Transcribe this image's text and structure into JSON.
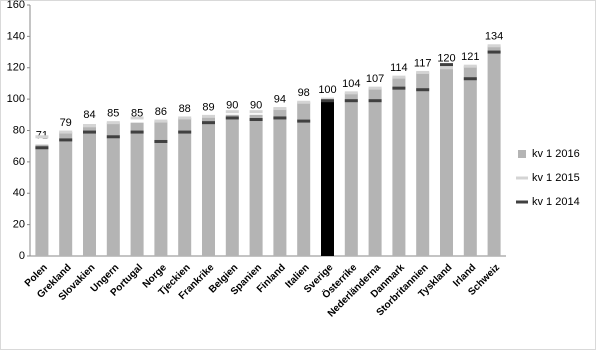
{
  "chart_data": {
    "type": "bar",
    "categories": [
      "Polen",
      "Grekland",
      "Slovakien",
      "Ungern",
      "Portugal",
      "Norge",
      "Tjeckien",
      "Frankrike",
      "Belgien",
      "Spanien",
      "Finland",
      "Italien",
      "Sverige",
      "Österrike",
      "Nederländerna",
      "Danmark",
      "Storbritannien",
      "Tyskland",
      "Irland",
      "Schweiz"
    ],
    "series": [
      {
        "name": "kv 1 2016",
        "color": "#b4b4b4",
        "colors": [
          "#b4b4b4",
          "#b4b4b4",
          "#b4b4b4",
          "#b4b4b4",
          "#b4b4b4",
          "#b4b4b4",
          "#b4b4b4",
          "#b4b4b4",
          "#b4b4b4",
          "#b4b4b4",
          "#b4b4b4",
          "#b4b4b4",
          "#000000",
          "#b4b4b4",
          "#b4b4b4",
          "#b4b4b4",
          "#b4b4b4",
          "#b4b4b4",
          "#b4b4b4",
          "#b4b4b4"
        ],
        "values": [
          71,
          79,
          84,
          85,
          85,
          86,
          88,
          89,
          90,
          90,
          94,
          98,
          100,
          104,
          107,
          114,
          117,
          120,
          121,
          134
        ]
      },
      {
        "name": "kv 1 2015",
        "color": "#d4d4d4",
        "values": [
          76,
          79,
          83,
          85,
          88,
          86,
          88,
          89,
          92,
          92,
          94,
          98,
          100,
          104,
          107,
          114,
          117,
          120,
          121,
          134
        ]
      },
      {
        "name": "kv 1 2014",
        "color": "#404040",
        "values": [
          69,
          74,
          79,
          76,
          79,
          73,
          79,
          85,
          88,
          87,
          88,
          86,
          99,
          99,
          99,
          107,
          106,
          122,
          113,
          130
        ]
      }
    ],
    "ylim": [
      0,
      160
    ],
    "yticks": [
      0,
      20,
      40,
      60,
      80,
      100,
      120,
      140,
      160
    ],
    "grid": false
  }
}
